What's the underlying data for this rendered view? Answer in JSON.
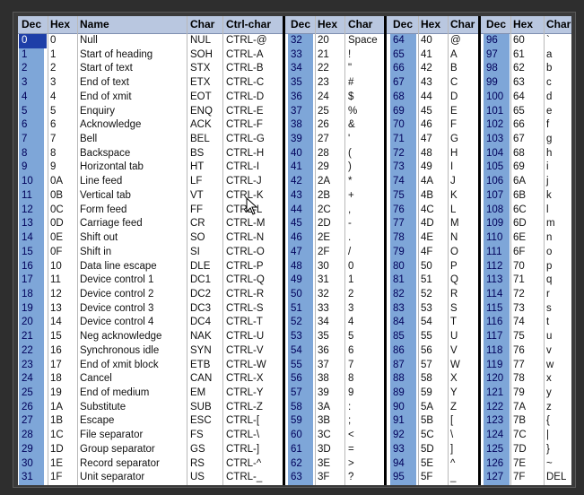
{
  "headers": {
    "b1": [
      "Dec",
      "Hex",
      "Name",
      "Char",
      "Ctrl-char"
    ],
    "b2": [
      "Dec",
      "Hex",
      "Char"
    ],
    "b3": [
      "Dec",
      "Hex",
      "Char"
    ],
    "b4": [
      "Dec",
      "Hex",
      "Char"
    ]
  },
  "rows": [
    [
      "0",
      "0",
      "Null",
      "NUL",
      "CTRL-@",
      "32",
      "20",
      "Space",
      "64",
      "40",
      "@",
      "96",
      "60",
      "`"
    ],
    [
      "1",
      "1",
      "Start of heading",
      "SOH",
      "CTRL-A",
      "33",
      "21",
      "!",
      "65",
      "41",
      "A",
      "97",
      "61",
      "a"
    ],
    [
      "2",
      "2",
      "Start of text",
      "STX",
      "CTRL-B",
      "34",
      "22",
      "\"",
      "66",
      "42",
      "B",
      "98",
      "62",
      "b"
    ],
    [
      "3",
      "3",
      "End of text",
      "ETX",
      "CTRL-C",
      "35",
      "23",
      "#",
      "67",
      "43",
      "C",
      "99",
      "63",
      "c"
    ],
    [
      "4",
      "4",
      "End of xmit",
      "EOT",
      "CTRL-D",
      "36",
      "24",
      "$",
      "68",
      "44",
      "D",
      "100",
      "64",
      "d"
    ],
    [
      "5",
      "5",
      "Enquiry",
      "ENQ",
      "CTRL-E",
      "37",
      "25",
      "%",
      "69",
      "45",
      "E",
      "101",
      "65",
      "e"
    ],
    [
      "6",
      "6",
      "Acknowledge",
      "ACK",
      "CTRL-F",
      "38",
      "26",
      "&",
      "70",
      "46",
      "F",
      "102",
      "66",
      "f"
    ],
    [
      "7",
      "7",
      "Bell",
      "BEL",
      "CTRL-G",
      "39",
      "27",
      "'",
      "71",
      "47",
      "G",
      "103",
      "67",
      "g"
    ],
    [
      "8",
      "8",
      "Backspace",
      "BS",
      "CTRL-H",
      "40",
      "28",
      "(",
      "72",
      "48",
      "H",
      "104",
      "68",
      "h"
    ],
    [
      "9",
      "9",
      "Horizontal tab",
      "HT",
      "CTRL-I",
      "41",
      "29",
      ")",
      "73",
      "49",
      "I",
      "105",
      "69",
      "i"
    ],
    [
      "10",
      "0A",
      "Line feed",
      "LF",
      "CTRL-J",
      "42",
      "2A",
      "*",
      "74",
      "4A",
      "J",
      "106",
      "6A",
      "j"
    ],
    [
      "11",
      "0B",
      "Vertical tab",
      "VT",
      "CTRL-K",
      "43",
      "2B",
      "+",
      "75",
      "4B",
      "K",
      "107",
      "6B",
      "k"
    ],
    [
      "12",
      "0C",
      "Form feed",
      "FF",
      "CTRL-L",
      "44",
      "2C",
      ",",
      "76",
      "4C",
      "L",
      "108",
      "6C",
      "l"
    ],
    [
      "13",
      "0D",
      "Carriage feed",
      "CR",
      "CTRL-M",
      "45",
      "2D",
      "-",
      "77",
      "4D",
      "M",
      "109",
      "6D",
      "m"
    ],
    [
      "14",
      "0E",
      "Shift out",
      "SO",
      "CTRL-N",
      "46",
      "2E",
      ".",
      "78",
      "4E",
      "N",
      "110",
      "6E",
      "n"
    ],
    [
      "15",
      "0F",
      "Shift in",
      "SI",
      "CTRL-O",
      "47",
      "2F",
      "/",
      "79",
      "4F",
      "O",
      "111",
      "6F",
      "o"
    ],
    [
      "16",
      "10",
      "Data line escape",
      "DLE",
      "CTRL-P",
      "48",
      "30",
      "0",
      "80",
      "50",
      "P",
      "112",
      "70",
      "p"
    ],
    [
      "17",
      "11",
      "Device control 1",
      "DC1",
      "CTRL-Q",
      "49",
      "31",
      "1",
      "81",
      "51",
      "Q",
      "113",
      "71",
      "q"
    ],
    [
      "18",
      "12",
      "Device control 2",
      "DC2",
      "CTRL-R",
      "50",
      "32",
      "2",
      "82",
      "52",
      "R",
      "114",
      "72",
      "r"
    ],
    [
      "19",
      "13",
      "Device control 3",
      "DC3",
      "CTRL-S",
      "51",
      "33",
      "3",
      "83",
      "53",
      "S",
      "115",
      "73",
      "s"
    ],
    [
      "20",
      "14",
      "Device control 4",
      "DC4",
      "CTRL-T",
      "52",
      "34",
      "4",
      "84",
      "54",
      "T",
      "116",
      "74",
      "t"
    ],
    [
      "21",
      "15",
      "Neg acknowledge",
      "NAK",
      "CTRL-U",
      "53",
      "35",
      "5",
      "85",
      "55",
      "U",
      "117",
      "75",
      "u"
    ],
    [
      "22",
      "16",
      "Synchronous idle",
      "SYN",
      "CTRL-V",
      "54",
      "36",
      "6",
      "86",
      "56",
      "V",
      "118",
      "76",
      "v"
    ],
    [
      "23",
      "17",
      "End of xmit block",
      "ETB",
      "CTRL-W",
      "55",
      "37",
      "7",
      "87",
      "57",
      "W",
      "119",
      "77",
      "w"
    ],
    [
      "24",
      "18",
      "Cancel",
      "CAN",
      "CTRL-X",
      "56",
      "38",
      "8",
      "88",
      "58",
      "X",
      "120",
      "78",
      "x"
    ],
    [
      "25",
      "19",
      "End of medium",
      "EM",
      "CTRL-Y",
      "57",
      "39",
      "9",
      "89",
      "59",
      "Y",
      "121",
      "79",
      "y"
    ],
    [
      "26",
      "1A",
      "Substitute",
      "SUB",
      "CTRL-Z",
      "58",
      "3A",
      ":",
      "90",
      "5A",
      "Z",
      "122",
      "7A",
      "z"
    ],
    [
      "27",
      "1B",
      "Escape",
      "ESC",
      "CTRL-[",
      "59",
      "3B",
      ";",
      "91",
      "5B",
      "[",
      "123",
      "7B",
      "{"
    ],
    [
      "28",
      "1C",
      "File separator",
      "FS",
      "CTRL-\\",
      "60",
      "3C",
      "<",
      "92",
      "5C",
      "\\",
      "124",
      "7C",
      "|"
    ],
    [
      "29",
      "1D",
      "Group separator",
      "GS",
      "CTRL-]",
      "61",
      "3D",
      "=",
      "93",
      "5D",
      "]",
      "125",
      "7D",
      "}"
    ],
    [
      "30",
      "1E",
      "Record separator",
      "RS",
      "CTRL-^",
      "62",
      "3E",
      ">",
      "94",
      "5E",
      "^",
      "126",
      "7E",
      "~"
    ],
    [
      "31",
      "1F",
      "Unit separator",
      "US",
      "CTRL-_",
      "63",
      "3F",
      "?",
      "95",
      "5F",
      "_",
      "127",
      "7F",
      "DEL"
    ]
  ],
  "colors": {
    "header_bg": "#b9c7e0",
    "dec_column_bg": "#7ea6d8",
    "selected_bg": "#1e3fa8",
    "block_divider": "#000000"
  },
  "icons": {
    "cursor": "mouse-pointer-icon"
  }
}
